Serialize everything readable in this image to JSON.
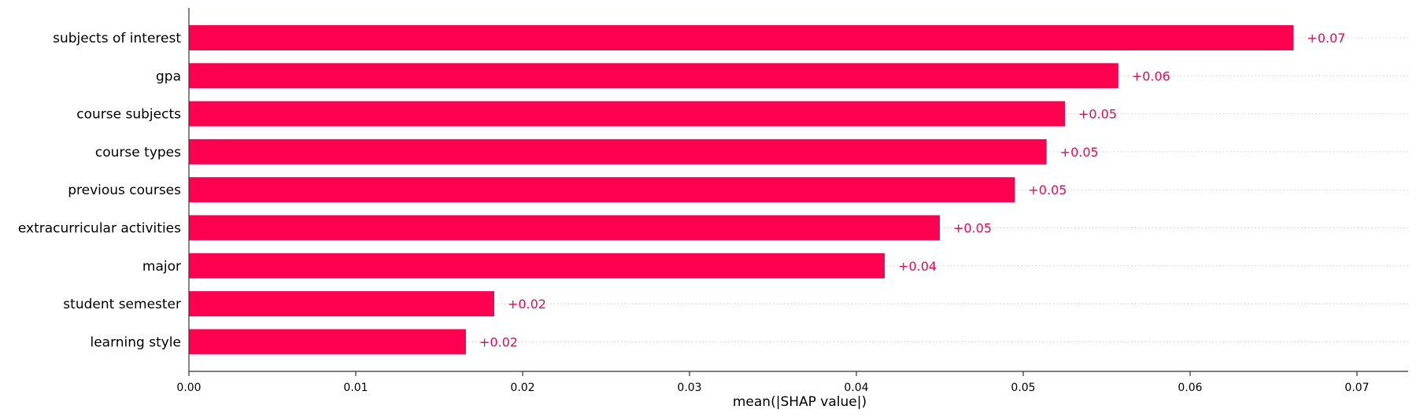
{
  "chart_data": {
    "type": "bar",
    "orientation": "horizontal",
    "categories": [
      "subjects of interest",
      "gpa",
      "course subjects",
      "course types",
      "previous courses",
      "extracurricular activities",
      "major",
      "student semester",
      "learning style"
    ],
    "values": [
      0.0662,
      0.0557,
      0.0525,
      0.0514,
      0.0495,
      0.045,
      0.0417,
      0.0183,
      0.0166
    ],
    "value_labels": [
      "+0.07",
      "+0.06",
      "+0.05",
      "+0.05",
      "+0.05",
      "+0.05",
      "+0.04",
      "+0.02",
      "+0.02"
    ],
    "xlabel": "mean(|SHAP value|)",
    "ylabel": "",
    "xlim": [
      0,
      0.073
    ],
    "xticks": [
      0.0,
      0.01,
      0.02,
      0.03,
      0.04,
      0.05,
      0.06,
      0.07
    ],
    "xtick_labels": [
      "0.00",
      "0.01",
      "0.02",
      "0.03",
      "0.04",
      "0.05",
      "0.06",
      "0.07"
    ],
    "grid": "dotted horizontal guide lines per row",
    "bar_color": "#ff0051",
    "axis_color": "#333333",
    "guide_color": "#cccccc"
  }
}
